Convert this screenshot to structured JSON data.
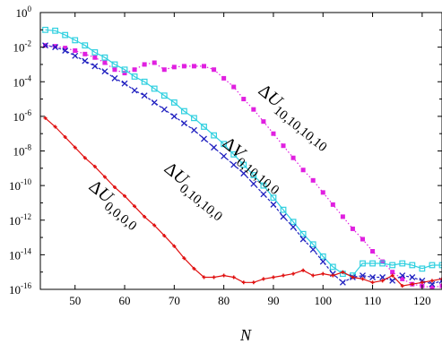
{
  "chart_data": {
    "type": "line",
    "xlabel": "N",
    "ylabel": "",
    "xlim": [
      43,
      124
    ],
    "ylim_log10": [
      -16,
      0
    ],
    "yscale": "log",
    "x_ticks": [
      50,
      60,
      70,
      80,
      90,
      100,
      110,
      120
    ],
    "y_ticks": [
      {
        "mantissa": "10",
        "exponent": "0"
      },
      {
        "mantissa": "10",
        "exponent": "-2"
      },
      {
        "mantissa": "10",
        "exponent": "-4"
      },
      {
        "mantissa": "10",
        "exponent": "-6"
      },
      {
        "mantissa": "10",
        "exponent": "-8"
      },
      {
        "mantissa": "10",
        "exponent": "-10"
      },
      {
        "mantissa": "10",
        "exponent": "-12"
      },
      {
        "mantissa": "10",
        "exponent": "-14"
      },
      {
        "mantissa": "10",
        "exponent": "-16"
      }
    ],
    "grid": false,
    "series": [
      {
        "name": "ΔU_{10,10,10,10}",
        "label_parts": {
          "main": "ΔU",
          "subscript": "10,10,10,10"
        },
        "color": "#e020e0",
        "line_style": "dotted",
        "marker": "square-filled",
        "x": [
          44,
          46,
          48,
          50,
          52,
          54,
          56,
          58,
          60,
          62,
          64,
          66,
          68,
          70,
          72,
          74,
          76,
          78,
          80,
          82,
          84,
          86,
          88,
          90,
          92,
          94,
          96,
          98,
          100,
          102,
          104,
          106,
          108,
          110,
          112,
          114,
          116,
          118,
          120,
          122,
          124
        ],
        "y_log10": [
          -1.9,
          -1.95,
          -2.05,
          -2.2,
          -2.4,
          -2.6,
          -2.9,
          -3.3,
          -3.5,
          -3.3,
          -3.0,
          -2.9,
          -3.3,
          -3.15,
          -3.1,
          -3.1,
          -3.1,
          -3.3,
          -3.8,
          -4.3,
          -5.0,
          -5.6,
          -6.3,
          -7.0,
          -7.7,
          -8.4,
          -9.1,
          -9.7,
          -10.4,
          -11.1,
          -11.8,
          -12.5,
          -13.1,
          -13.8,
          -14.4,
          -15.0,
          -15.4,
          -15.7,
          -15.8,
          -15.9,
          -15.8
        ]
      },
      {
        "name": "ΔV_{0,10,10,0}",
        "label_parts": {
          "main": "ΔV",
          "subscript": "0,10,10,0"
        },
        "color": "#30d0e0",
        "line_style": "solid",
        "marker": "square-open",
        "x": [
          44,
          46,
          48,
          50,
          52,
          54,
          56,
          58,
          60,
          62,
          64,
          66,
          68,
          70,
          72,
          74,
          76,
          78,
          80,
          82,
          84,
          86,
          88,
          90,
          92,
          94,
          96,
          98,
          100,
          102,
          104,
          106,
          108,
          110,
          112,
          114,
          116,
          118,
          120,
          122,
          124
        ],
        "y_log10": [
          -1.0,
          -1.05,
          -1.3,
          -1.6,
          -1.9,
          -2.3,
          -2.6,
          -3.0,
          -3.3,
          -3.7,
          -4.0,
          -4.4,
          -4.8,
          -5.2,
          -5.7,
          -6.1,
          -6.6,
          -7.1,
          -7.6,
          -8.2,
          -8.8,
          -9.4,
          -10.0,
          -10.7,
          -11.4,
          -12.1,
          -12.8,
          -13.4,
          -14.1,
          -14.7,
          -15.1,
          -15.2,
          -14.5,
          -14.5,
          -14.5,
          -14.6,
          -14.5,
          -14.6,
          -14.8,
          -14.6,
          -14.6
        ]
      },
      {
        "name": "ΔU_{0,10,10,0}",
        "label_parts": {
          "main": "ΔU",
          "subscript": "0,10,10,0"
        },
        "color": "#2020c0",
        "line_style": "dashed",
        "marker": "cross",
        "x": [
          44,
          46,
          48,
          50,
          52,
          54,
          56,
          58,
          60,
          62,
          64,
          66,
          68,
          70,
          72,
          74,
          76,
          78,
          80,
          82,
          84,
          86,
          88,
          90,
          92,
          94,
          96,
          98,
          100,
          102,
          104,
          106,
          108,
          110,
          112,
          114,
          116,
          118,
          120,
          122,
          124
        ],
        "y_log10": [
          -1.9,
          -2.0,
          -2.2,
          -2.5,
          -2.8,
          -3.1,
          -3.4,
          -3.8,
          -4.1,
          -4.5,
          -4.8,
          -5.2,
          -5.6,
          -6.0,
          -6.4,
          -6.8,
          -7.3,
          -7.8,
          -8.3,
          -8.8,
          -9.3,
          -9.9,
          -10.5,
          -11.1,
          -11.8,
          -12.4,
          -13.1,
          -13.7,
          -14.4,
          -15.1,
          -15.6,
          -15.3,
          -15.2,
          -15.3,
          -15.3,
          -15.5,
          -15.2,
          -15.3,
          -15.5,
          -15.7,
          -15.5
        ]
      },
      {
        "name": "ΔU_{0,0,0,0}",
        "label_parts": {
          "main": "ΔU",
          "subscript": "0,0,0,0"
        },
        "color": "#e01010",
        "line_style": "solid",
        "marker": "plus-small",
        "x": [
          44,
          46,
          48,
          50,
          52,
          54,
          56,
          58,
          60,
          62,
          64,
          66,
          68,
          70,
          72,
          74,
          76,
          78,
          80,
          82,
          84,
          86,
          88,
          90,
          92,
          94,
          96,
          98,
          100,
          102,
          104,
          106,
          108,
          110,
          112,
          114,
          116,
          118,
          120,
          122,
          124
        ],
        "y_log10": [
          -6.1,
          -6.6,
          -7.2,
          -7.8,
          -8.4,
          -8.9,
          -9.5,
          -10.1,
          -10.6,
          -11.2,
          -11.8,
          -12.3,
          -12.9,
          -13.5,
          -14.2,
          -14.8,
          -15.3,
          -15.3,
          -15.2,
          -15.3,
          -15.6,
          -15.6,
          -15.4,
          -15.3,
          -15.2,
          -15.1,
          -14.9,
          -15.2,
          -15.1,
          -15.2,
          -15.0,
          -15.3,
          -15.4,
          -15.6,
          -15.5,
          -15.2,
          -15.8,
          -15.7,
          -15.6,
          -15.5,
          -15.4
        ]
      }
    ]
  }
}
